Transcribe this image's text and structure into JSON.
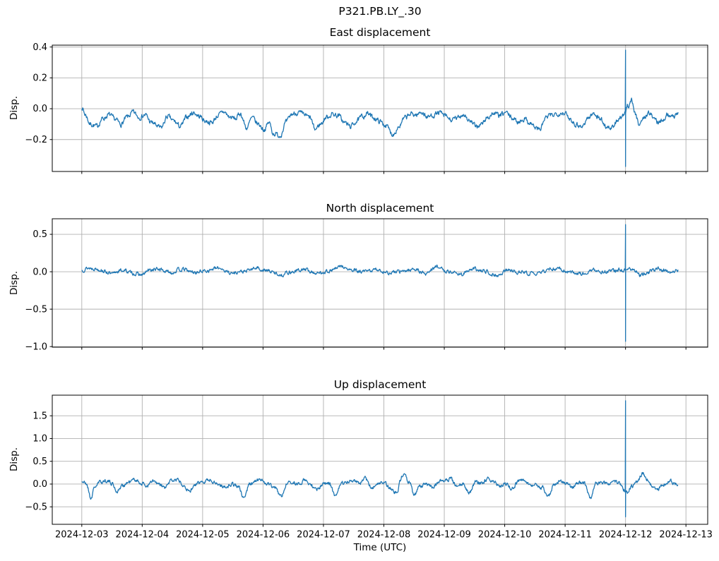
{
  "figure": {
    "suptitle": "P321.PB.LY_.30",
    "xlabel": "Time (UTC)",
    "line_color": "#1f77b4",
    "grid_color": "#b0b0b0",
    "spine_color": "#000000",
    "text_color": "#000000",
    "background": "#ffffff"
  },
  "x_axis": {
    "tick_labels": [
      "2024-12-03",
      "2024-12-04",
      "2024-12-05",
      "2024-12-06",
      "2024-12-07",
      "2024-12-08",
      "2024-12-09",
      "2024-12-10",
      "2024-12-11",
      "2024-12-12",
      "2024-12-13"
    ],
    "tick_days": [
      0,
      1,
      2,
      3,
      4,
      5,
      6,
      7,
      8,
      9,
      10
    ],
    "xlim_days": [
      -0.489,
      10.363
    ],
    "data_start_day": 0.0,
    "data_end_day": 9.87
  },
  "chart_data": [
    {
      "type": "line",
      "title": "East displacement",
      "ylabel": "Disp.",
      "ylim": [
        -0.407,
        0.412
      ],
      "yticks": [
        0.4,
        0.2,
        0.0,
        -0.2
      ],
      "ytick_labels": [
        "0.4",
        "0.2",
        "0.0",
        "−0.2"
      ],
      "noise_amp": 0.012,
      "seed": 7,
      "spike": {
        "day": 9.0,
        "max": 0.38,
        "min": -0.375
      },
      "anchors": [
        [
          0,
          0.01
        ],
        [
          0.06,
          -0.04
        ],
        [
          0.14,
          -0.1
        ],
        [
          0.25,
          -0.115
        ],
        [
          0.34,
          -0.065
        ],
        [
          0.45,
          -0.04
        ],
        [
          0.55,
          -0.07
        ],
        [
          0.65,
          -0.1
        ],
        [
          0.75,
          -0.055
        ],
        [
          0.85,
          -0.025
        ],
        [
          0.95,
          -0.055
        ],
        [
          1.05,
          -0.04
        ],
        [
          1.15,
          -0.09
        ],
        [
          1.31,
          -0.125
        ],
        [
          1.42,
          -0.05
        ],
        [
          1.52,
          -0.08
        ],
        [
          1.63,
          -0.115
        ],
        [
          1.75,
          -0.05
        ],
        [
          1.85,
          -0.025
        ],
        [
          1.95,
          -0.05
        ],
        [
          2.05,
          -0.08
        ],
        [
          2.15,
          -0.09
        ],
        [
          2.25,
          -0.045
        ],
        [
          2.35,
          -0.02
        ],
        [
          2.45,
          -0.055
        ],
        [
          2.55,
          -0.065
        ],
        [
          2.62,
          -0.03
        ],
        [
          2.73,
          -0.125
        ],
        [
          2.82,
          -0.06
        ],
        [
          2.92,
          -0.1
        ],
        [
          3.02,
          -0.135
        ],
        [
          3.1,
          -0.09
        ],
        [
          3.17,
          -0.16
        ],
        [
          3.28,
          -0.175
        ],
        [
          3.38,
          -0.09
        ],
        [
          3.48,
          -0.035
        ],
        [
          3.58,
          -0.025
        ],
        [
          3.68,
          -0.04
        ],
        [
          3.78,
          -0.06
        ],
        [
          3.86,
          -0.135
        ],
        [
          3.95,
          -0.1
        ],
        [
          4.05,
          -0.055
        ],
        [
          4.15,
          -0.035
        ],
        [
          4.25,
          -0.045
        ],
        [
          4.35,
          -0.09
        ],
        [
          4.45,
          -0.115
        ],
        [
          4.55,
          -0.08
        ],
        [
          4.65,
          -0.05
        ],
        [
          4.72,
          -0.03
        ],
        [
          4.82,
          -0.055
        ],
        [
          4.92,
          -0.08
        ],
        [
          5.02,
          -0.105
        ],
        [
          5.15,
          -0.165
        ],
        [
          5.25,
          -0.115
        ],
        [
          5.35,
          -0.06
        ],
        [
          5.45,
          -0.035
        ],
        [
          5.55,
          -0.04
        ],
        [
          5.62,
          -0.02
        ],
        [
          5.72,
          -0.055
        ],
        [
          5.82,
          -0.04
        ],
        [
          5.92,
          -0.025
        ],
        [
          6.02,
          -0.05
        ],
        [
          6.12,
          -0.075
        ],
        [
          6.22,
          -0.06
        ],
        [
          6.32,
          -0.035
        ],
        [
          6.42,
          -0.08
        ],
        [
          6.52,
          -0.115
        ],
        [
          6.62,
          -0.1
        ],
        [
          6.72,
          -0.055
        ],
        [
          6.82,
          -0.03
        ],
        [
          6.92,
          -0.045
        ],
        [
          7.02,
          -0.025
        ],
        [
          7.12,
          -0.06
        ],
        [
          7.22,
          -0.085
        ],
        [
          7.32,
          -0.065
        ],
        [
          7.42,
          -0.09
        ],
        [
          7.52,
          -0.125
        ],
        [
          7.58,
          -0.135
        ],
        [
          7.68,
          -0.06
        ],
        [
          7.78,
          -0.04
        ],
        [
          7.88,
          -0.03
        ],
        [
          7.98,
          -0.025
        ],
        [
          8.08,
          -0.065
        ],
        [
          8.18,
          -0.1
        ],
        [
          8.28,
          -0.115
        ],
        [
          8.38,
          -0.06
        ],
        [
          8.48,
          -0.03
        ],
        [
          8.58,
          -0.065
        ],
        [
          8.68,
          -0.115
        ],
        [
          8.78,
          -0.125
        ],
        [
          8.88,
          -0.07
        ],
        [
          8.97,
          -0.05
        ],
        [
          9.04,
          0.02
        ],
        [
          9.1,
          0.06
        ],
        [
          9.16,
          -0.035
        ],
        [
          9.22,
          -0.095
        ],
        [
          9.3,
          -0.065
        ],
        [
          9.38,
          -0.025
        ],
        [
          9.46,
          -0.055
        ],
        [
          9.54,
          -0.09
        ],
        [
          9.62,
          -0.065
        ],
        [
          9.7,
          -0.035
        ],
        [
          9.78,
          -0.055
        ],
        [
          9.87,
          -0.02
        ]
      ]
    },
    {
      "type": "line",
      "title": "North displacement",
      "ylabel": "Disp.",
      "ylim": [
        -1.008,
        0.708
      ],
      "yticks": [
        0.5,
        0.0,
        -0.5,
        -1.0
      ],
      "ytick_labels": [
        "0.5",
        "0.0",
        "−0.5",
        "−1.0"
      ],
      "noise_amp": 0.018,
      "seed": 13,
      "spike": {
        "day": 9.0,
        "max": 0.63,
        "min": -0.93
      },
      "anchors": [
        [
          0,
          0.02
        ],
        [
          0.1,
          0.05
        ],
        [
          0.2,
          0.045
        ],
        [
          0.3,
          0.03
        ],
        [
          0.4,
          0.0
        ],
        [
          0.5,
          -0.035
        ],
        [
          0.6,
          0.01
        ],
        [
          0.7,
          0.02
        ],
        [
          0.8,
          -0.01
        ],
        [
          0.9,
          -0.03
        ],
        [
          1.0,
          -0.045
        ],
        [
          1.1,
          0.015
        ],
        [
          1.2,
          0.03
        ],
        [
          1.3,
          0.035
        ],
        [
          1.4,
          0.0
        ],
        [
          1.5,
          -0.01
        ],
        [
          1.6,
          0.025
        ],
        [
          1.7,
          0.03
        ],
        [
          1.8,
          0.0
        ],
        [
          1.9,
          -0.01
        ],
        [
          2.0,
          0.01
        ],
        [
          2.1,
          0.02
        ],
        [
          2.2,
          0.04
        ],
        [
          2.3,
          0.05
        ],
        [
          2.4,
          0.0
        ],
        [
          2.5,
          -0.02
        ],
        [
          2.6,
          0.0
        ],
        [
          2.7,
          0.0
        ],
        [
          2.8,
          0.03
        ],
        [
          2.9,
          0.055
        ],
        [
          3.0,
          0.02
        ],
        [
          3.1,
          0.01
        ],
        [
          3.2,
          -0.02
        ],
        [
          3.3,
          -0.045
        ],
        [
          3.4,
          -0.01
        ],
        [
          3.5,
          0.0
        ],
        [
          3.6,
          0.02
        ],
        [
          3.7,
          0.03
        ],
        [
          3.8,
          0.0
        ],
        [
          3.9,
          -0.025
        ],
        [
          4.0,
          0.0
        ],
        [
          4.1,
          0.01
        ],
        [
          4.2,
          0.04
        ],
        [
          4.3,
          0.075
        ],
        [
          4.4,
          0.03
        ],
        [
          4.5,
          0.015
        ],
        [
          4.6,
          0.0
        ],
        [
          4.7,
          0.0
        ],
        [
          4.8,
          0.02
        ],
        [
          4.9,
          0.03
        ],
        [
          5.0,
          0.0
        ],
        [
          5.1,
          -0.02
        ],
        [
          5.2,
          0.0
        ],
        [
          5.3,
          0.0
        ],
        [
          5.4,
          0.02
        ],
        [
          5.5,
          0.04
        ],
        [
          5.6,
          0.0
        ],
        [
          5.7,
          -0.03
        ],
        [
          5.8,
          0.04
        ],
        [
          5.9,
          0.075
        ],
        [
          6.0,
          0.01
        ],
        [
          6.1,
          0.0
        ],
        [
          6.2,
          -0.02
        ],
        [
          6.3,
          -0.03
        ],
        [
          6.4,
          0.01
        ],
        [
          6.5,
          0.035
        ],
        [
          6.6,
          0.01
        ],
        [
          6.7,
          0.005
        ],
        [
          6.8,
          -0.03
        ],
        [
          6.9,
          -0.055
        ],
        [
          7.0,
          0.01
        ],
        [
          7.1,
          0.02
        ],
        [
          7.2,
          0.0
        ],
        [
          7.3,
          -0.005
        ],
        [
          7.4,
          -0.02
        ],
        [
          7.5,
          -0.035
        ],
        [
          7.6,
          0.0
        ],
        [
          7.7,
          0.02
        ],
        [
          7.8,
          0.035
        ],
        [
          7.9,
          0.045
        ],
        [
          8.0,
          0.01
        ],
        [
          8.1,
          0.0
        ],
        [
          8.2,
          -0.02
        ],
        [
          8.3,
          -0.025
        ],
        [
          8.4,
          0.0
        ],
        [
          8.5,
          0.02
        ],
        [
          8.6,
          0.005
        ],
        [
          8.7,
          0.0
        ],
        [
          8.8,
          0.015
        ],
        [
          8.9,
          0.03
        ],
        [
          8.97,
          0.02
        ],
        [
          9.05,
          0.035
        ],
        [
          9.15,
          0.02
        ],
        [
          9.25,
          -0.05
        ],
        [
          9.35,
          -0.02
        ],
        [
          9.45,
          0.02
        ],
        [
          9.55,
          0.045
        ],
        [
          9.65,
          0.01
        ],
        [
          9.75,
          0.0
        ],
        [
          9.87,
          0.025
        ]
      ]
    },
    {
      "type": "line",
      "title": "Up displacement",
      "ylabel": "Disp.",
      "ylim": [
        -0.884,
        1.953
      ],
      "yticks": [
        1.5,
        1.0,
        0.5,
        0.0,
        -0.5
      ],
      "ytick_labels": [
        "1.5",
        "1.0",
        "0.5",
        "0.0",
        "−0.5"
      ],
      "noise_amp": 0.032,
      "seed": 21,
      "spike": {
        "day": 9.0,
        "max": 1.83,
        "min": -0.72
      },
      "anchors": [
        [
          0,
          0.06
        ],
        [
          0.08,
          0.0
        ],
        [
          0.15,
          -0.31
        ],
        [
          0.22,
          -0.05
        ],
        [
          0.3,
          0.04
        ],
        [
          0.4,
          0.08
        ],
        [
          0.5,
          0.02
        ],
        [
          0.58,
          -0.16
        ],
        [
          0.68,
          -0.03
        ],
        [
          0.78,
          0.04
        ],
        [
          0.88,
          0.1
        ],
        [
          0.98,
          0.02
        ],
        [
          1.08,
          -0.04
        ],
        [
          1.18,
          0.06
        ],
        [
          1.28,
          -0.02
        ],
        [
          1.38,
          -0.08
        ],
        [
          1.48,
          0.08
        ],
        [
          1.58,
          0.1
        ],
        [
          1.68,
          0.0
        ],
        [
          1.78,
          -0.16
        ],
        [
          1.88,
          -0.02
        ],
        [
          1.98,
          0.04
        ],
        [
          2.08,
          0.1
        ],
        [
          2.18,
          0.06
        ],
        [
          2.28,
          -0.02
        ],
        [
          2.38,
          -0.06
        ],
        [
          2.48,
          0.0
        ],
        [
          2.58,
          -0.04
        ],
        [
          2.68,
          -0.3
        ],
        [
          2.78,
          0.0
        ],
        [
          2.88,
          0.06
        ],
        [
          2.98,
          0.1
        ],
        [
          3.08,
          0.0
        ],
        [
          3.18,
          -0.06
        ],
        [
          3.3,
          -0.27
        ],
        [
          3.4,
          0.02
        ],
        [
          3.5,
          0.04
        ],
        [
          3.6,
          0.0
        ],
        [
          3.7,
          0.1
        ],
        [
          3.8,
          -0.04
        ],
        [
          3.9,
          -0.12
        ],
        [
          4.0,
          0.02
        ],
        [
          4.1,
          0.0
        ],
        [
          4.2,
          -0.28
        ],
        [
          4.3,
          0.02
        ],
        [
          4.4,
          0.06
        ],
        [
          4.5,
          0.1
        ],
        [
          4.6,
          0.02
        ],
        [
          4.7,
          0.12
        ],
        [
          4.8,
          -0.08
        ],
        [
          4.9,
          0.0
        ],
        [
          5.0,
          0.04
        ],
        [
          5.1,
          -0.1
        ],
        [
          5.2,
          -0.18
        ],
        [
          5.32,
          0.2
        ],
        [
          5.42,
          0.06
        ],
        [
          5.5,
          -0.25
        ],
        [
          5.6,
          -0.05
        ],
        [
          5.7,
          0.0
        ],
        [
          5.8,
          -0.08
        ],
        [
          5.9,
          0.04
        ],
        [
          6.0,
          0.08
        ],
        [
          6.1,
          0.12
        ],
        [
          6.2,
          -0.04
        ],
        [
          6.3,
          0.0
        ],
        [
          6.42,
          -0.2
        ],
        [
          6.52,
          0.04
        ],
        [
          6.62,
          0.02
        ],
        [
          6.72,
          0.1
        ],
        [
          6.82,
          0.05
        ],
        [
          6.92,
          -0.06
        ],
        [
          7.02,
          0.0
        ],
        [
          7.12,
          -0.1
        ],
        [
          7.22,
          0.05
        ],
        [
          7.32,
          0.1
        ],
        [
          7.42,
          -0.05
        ],
        [
          7.52,
          0.0
        ],
        [
          7.62,
          -0.08
        ],
        [
          7.72,
          -0.26
        ],
        [
          7.82,
          0.0
        ],
        [
          7.92,
          0.06
        ],
        [
          8.02,
          0.0
        ],
        [
          8.12,
          -0.08
        ],
        [
          8.22,
          0.04
        ],
        [
          8.32,
          0.0
        ],
        [
          8.42,
          -0.3
        ],
        [
          8.52,
          0.02
        ],
        [
          8.62,
          0.05
        ],
        [
          8.72,
          0.0
        ],
        [
          8.82,
          0.06
        ],
        [
          8.9,
          0.02
        ],
        [
          8.97,
          -0.12
        ],
        [
          9.03,
          -0.18
        ],
        [
          9.1,
          -0.05
        ],
        [
          9.18,
          0.02
        ],
        [
          9.28,
          0.23
        ],
        [
          9.36,
          0.12
        ],
        [
          9.44,
          -0.05
        ],
        [
          9.52,
          -0.14
        ],
        [
          9.6,
          -0.06
        ],
        [
          9.68,
          0.02
        ],
        [
          9.76,
          0.06
        ],
        [
          9.83,
          0.0
        ],
        [
          9.87,
          -0.03
        ]
      ]
    }
  ]
}
